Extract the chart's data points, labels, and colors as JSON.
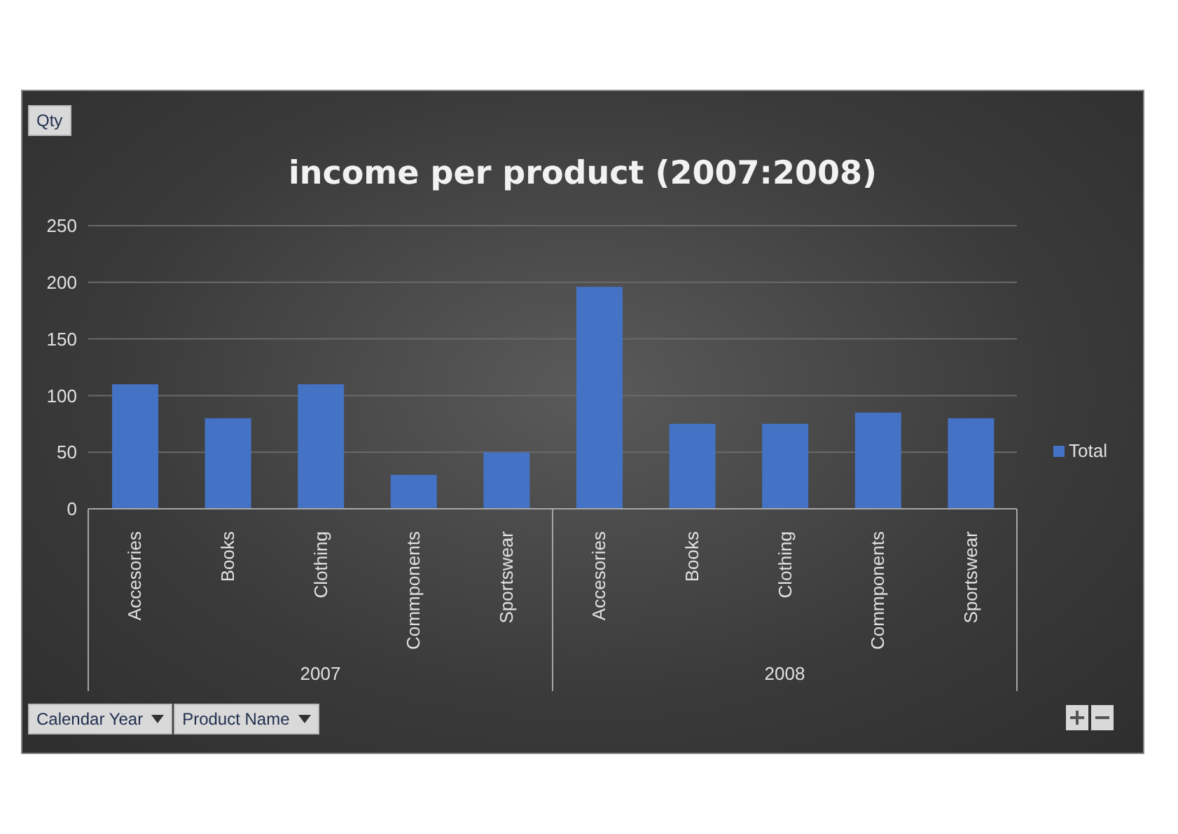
{
  "chart_data": {
    "type": "bar",
    "title": "income per product (2007:2008)",
    "categories": [
      "Accesories",
      "Books",
      "Clothing",
      "Commponents",
      "Sportswear",
      "Accesories",
      "Books",
      "Clothing",
      "Commponents",
      "Sportswear"
    ],
    "series": [
      {
        "name": "Total",
        "color": "#4472c4",
        "values": [
          110,
          80,
          110,
          30,
          50,
          196,
          75,
          75,
          85,
          80
        ]
      }
    ],
    "ylim": [
      0,
      250
    ],
    "yticks": [
      0,
      50,
      100,
      150,
      200,
      250
    ],
    "grid": "y",
    "legend": "right",
    "annotations": [
      "2007",
      "2008",
      "Qty",
      "Calendar Year",
      "Product Name"
    ]
  }
}
